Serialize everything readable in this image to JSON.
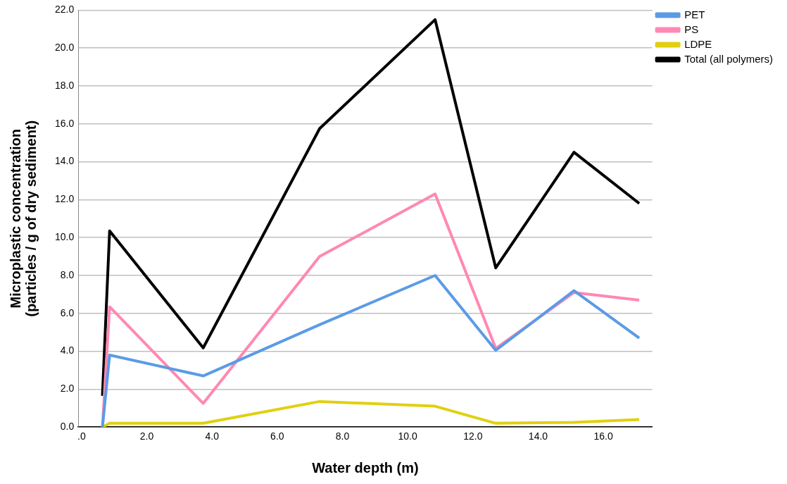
{
  "chart_data": {
    "type": "line",
    "xlabel": "Water depth (m)",
    "ylabel": "Microplastic concentration\n(particles / g of dry sediment)",
    "x": [
      0.64,
      0.86,
      3.73,
      7.3,
      10.84,
      12.7,
      15.1,
      17.1
    ],
    "series": [
      {
        "name": "PET",
        "color": "#5b9be6",
        "values": [
          0,
          3.8,
          2.7,
          5.4,
          8.0,
          4.05,
          7.2,
          4.7
        ]
      },
      {
        "name": "PS",
        "color": "#ff88b4",
        "values": [
          0,
          6.35,
          1.25,
          9.0,
          12.3,
          4.15,
          7.1,
          6.7
        ]
      },
      {
        "name": "LDPE",
        "color": "#e0d010",
        "values": [
          0,
          0.2,
          0.2,
          1.35,
          1.1,
          0.2,
          0.25,
          0.4
        ]
      },
      {
        "name": "Total (all polymers)",
        "color": "#000000",
        "values": [
          1.65,
          10.35,
          4.18,
          15.75,
          21.5,
          8.4,
          14.5,
          11.8
        ]
      }
    ],
    "xlim": [
      -0.1,
      17.5
    ],
    "xticks": [
      {
        "value": 0,
        "label": ".0"
      },
      {
        "value": 2,
        "label": "2.0"
      },
      {
        "value": 4,
        "label": "4.0"
      },
      {
        "value": 6,
        "label": "6.0"
      },
      {
        "value": 8,
        "label": "8.0"
      },
      {
        "value": 10,
        "label": "10.0"
      },
      {
        "value": 12,
        "label": "12.0"
      },
      {
        "value": 14,
        "label": "14.0"
      },
      {
        "value": 16,
        "label": "16.0"
      }
    ],
    "ylim": [
      0,
      22
    ],
    "yticks": [
      {
        "value": 0,
        "label": "0.0"
      },
      {
        "value": 2,
        "label": "2.0"
      },
      {
        "value": 4,
        "label": "4.0"
      },
      {
        "value": 6,
        "label": "6.0"
      },
      {
        "value": 8,
        "label": "8.0"
      },
      {
        "value": 10,
        "label": "10.0"
      },
      {
        "value": 12,
        "label": "12.0"
      },
      {
        "value": 14,
        "label": "14.0"
      },
      {
        "value": 16,
        "label": "16.0"
      },
      {
        "value": 18,
        "label": "18.0"
      },
      {
        "value": 20,
        "label": "20.0"
      },
      {
        "value": 22,
        "label": "22.0"
      }
    ],
    "grid": "y",
    "legend": "top right",
    "marker": "none",
    "line_style": "solid"
  }
}
